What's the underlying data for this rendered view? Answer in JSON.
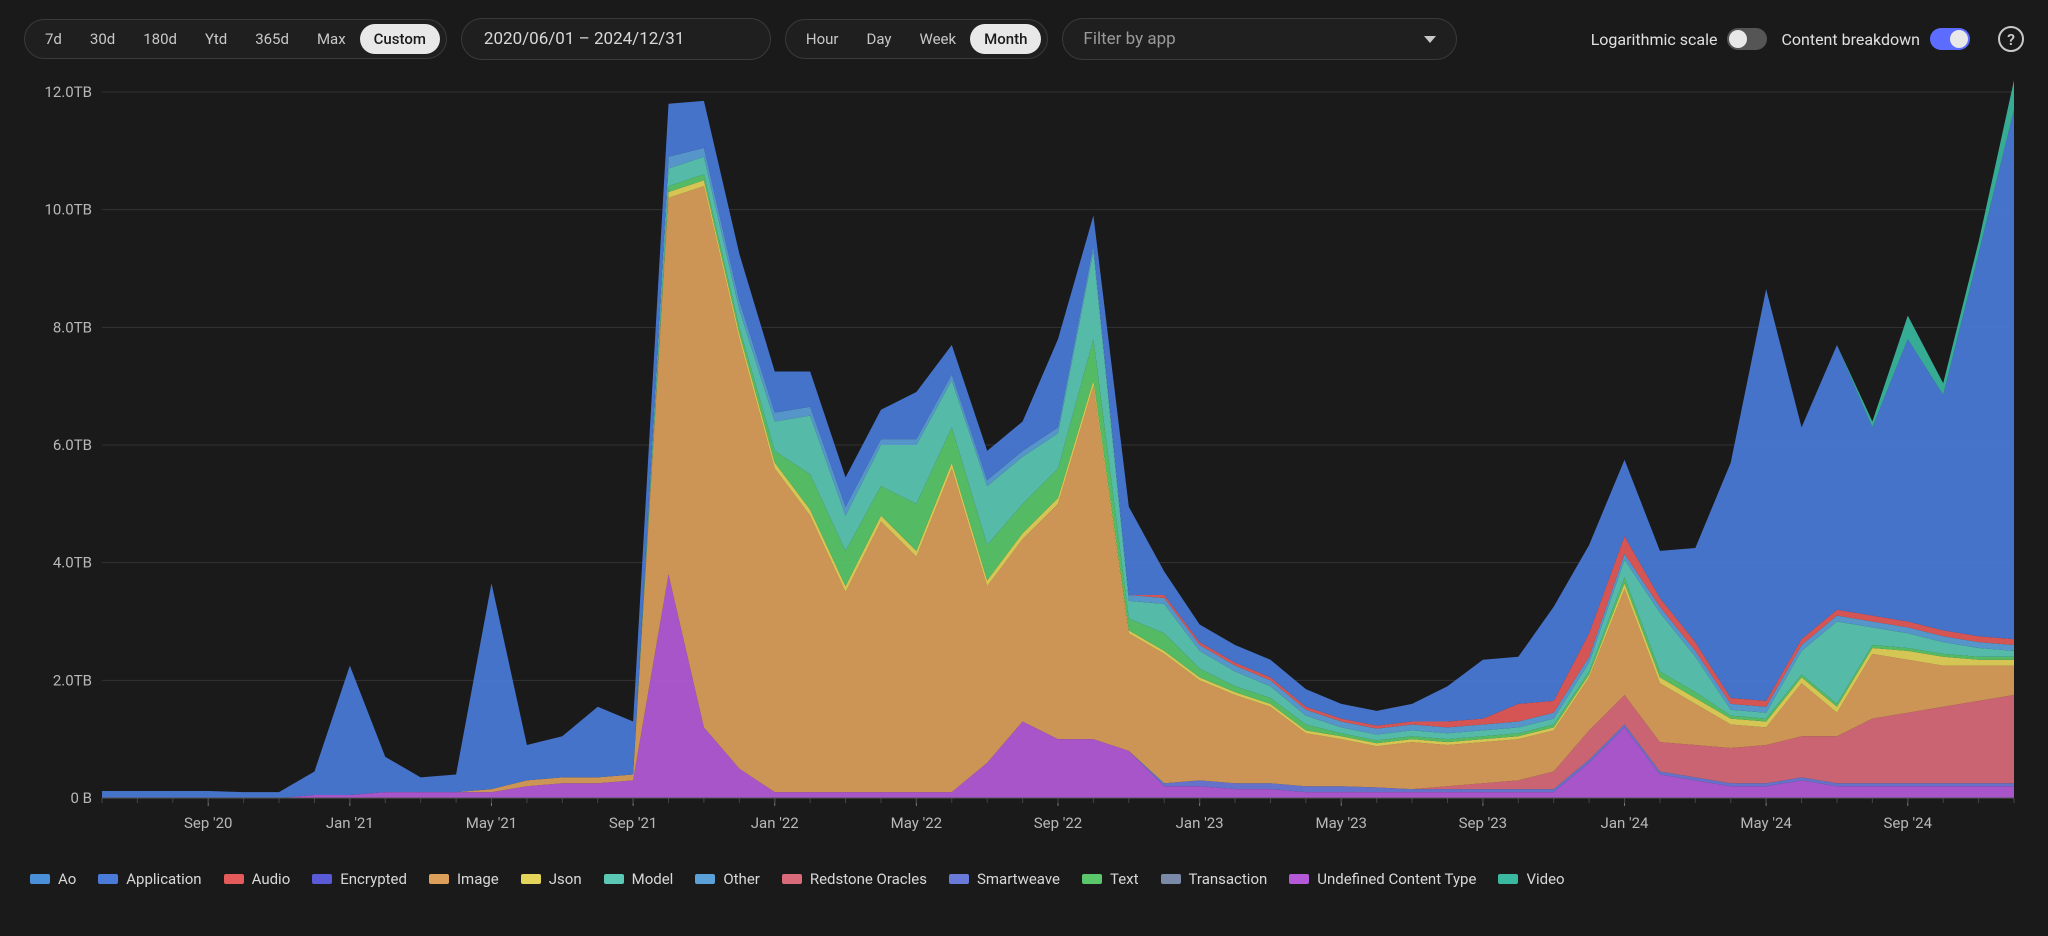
{
  "toolbar": {
    "range_presets": [
      "7d",
      "30d",
      "180d",
      "Ytd",
      "365d",
      "Max",
      "Custom"
    ],
    "range_active_index": 6,
    "date_range_text": "2020/06/01 – 2024/12/31",
    "granularity_options": [
      "Hour",
      "Day",
      "Week",
      "Month"
    ],
    "granularity_active_index": 3,
    "filter_placeholder": "Filter by app",
    "log_scale": {
      "label": "Logarithmic scale",
      "on": false
    },
    "content_breakdown": {
      "label": "Content breakdown",
      "on": true
    }
  },
  "chart": {
    "type": "stacked-area",
    "background_color": "#1a1a1a",
    "grid_color": "#333333",
    "axis_text_color": "#b8b8b8",
    "y_axis": {
      "min": 0,
      "max": 12,
      "tick_step": 2,
      "tick_labels": [
        "0 B",
        "2.0TB",
        "4.0TB",
        "6.0TB",
        "8.0TB",
        "10.0TB",
        "12.0TB"
      ]
    },
    "x_axis": {
      "tick_months": [
        "Sep '20",
        "Jan '21",
        "May '21",
        "Sep '21",
        "Jan '22",
        "May '22",
        "Sep '22",
        "Jan '23",
        "May '23",
        "Sep '23",
        "Jan '24",
        "May '24",
        "Sep '24"
      ],
      "tick_indices": [
        3,
        7,
        11,
        15,
        19,
        23,
        27,
        31,
        35,
        39,
        43,
        47,
        51
      ]
    },
    "months_count": 55,
    "series": [
      {
        "key": "ao",
        "label": "Ao",
        "color": "#4a90d9",
        "values": [
          0,
          0,
          0,
          0,
          0,
          0,
          0,
          0,
          0,
          0,
          0,
          0,
          0,
          0,
          0,
          0,
          0,
          0,
          0,
          0,
          0,
          0,
          0,
          0,
          0,
          0,
          0,
          0,
          0,
          0,
          0,
          0,
          0,
          0,
          0,
          0,
          0,
          0,
          0,
          0,
          0,
          0,
          0,
          0,
          0,
          0,
          0,
          0,
          0,
          0,
          0,
          0,
          0,
          0,
          0
        ]
      },
      {
        "key": "application",
        "label": "Application",
        "color": "#4a7bd9",
        "values": [
          0.12,
          0.12,
          0.12,
          0.12,
          0.1,
          0.1,
          0.4,
          2.2,
          0.6,
          0.25,
          0.3,
          3.5,
          0.6,
          0.7,
          1.2,
          0.9,
          0.9,
          0.8,
          0.8,
          0.7,
          0.6,
          0.5,
          0.5,
          0.8,
          0.5,
          0.5,
          0.5,
          1.5,
          0.5,
          1.5,
          0.4,
          0.3,
          0.3,
          0.3,
          0.3,
          0.25,
          0.25,
          0.3,
          0.6,
          1.0,
          0.8,
          1.6,
          1.5,
          1.3,
          0.8,
          1.6,
          4.0,
          7.0,
          3.6,
          4.5,
          3.2,
          4.8,
          4.0,
          6.5,
          9.0
        ]
      },
      {
        "key": "audio",
        "label": "Audio",
        "color": "#e55a5a",
        "values": [
          0,
          0,
          0,
          0,
          0,
          0,
          0,
          0,
          0,
          0,
          0,
          0,
          0,
          0,
          0,
          0,
          0,
          0,
          0,
          0,
          0,
          0,
          0,
          0,
          0,
          0,
          0,
          0,
          0,
          0,
          0.05,
          0.05,
          0.05,
          0.05,
          0.05,
          0.05,
          0.05,
          0.05,
          0.1,
          0.1,
          0.3,
          0.2,
          0.4,
          0.3,
          0.15,
          0.15,
          0.1,
          0.1,
          0.1,
          0.1,
          0.1,
          0.1,
          0.1,
          0.1,
          0.1
        ]
      },
      {
        "key": "encrypted",
        "label": "Encrypted",
        "color": "#5a5ad9",
        "values": [
          0,
          0,
          0,
          0,
          0,
          0,
          0,
          0,
          0,
          0,
          0,
          0,
          0,
          0,
          0,
          0,
          0,
          0,
          0,
          0,
          0,
          0,
          0,
          0,
          0,
          0,
          0,
          0,
          0,
          0,
          0,
          0,
          0,
          0,
          0,
          0,
          0,
          0,
          0,
          0,
          0,
          0,
          0,
          0,
          0,
          0,
          0,
          0,
          0,
          0,
          0,
          0,
          0,
          0,
          0
        ]
      },
      {
        "key": "image",
        "label": "Image",
        "color": "#dca05a",
        "values": [
          0,
          0,
          0,
          0,
          0,
          0,
          0,
          0,
          0,
          0,
          0,
          0.05,
          0.1,
          0.1,
          0.1,
          0.1,
          6.4,
          9.2,
          7.3,
          5.5,
          4.7,
          3.4,
          4.6,
          4.0,
          5.5,
          3.0,
          3.1,
          4.0,
          6.0,
          2.0,
          2.2,
          1.7,
          1.5,
          1.3,
          0.9,
          0.8,
          0.7,
          0.8,
          0.7,
          0.7,
          0.7,
          0.7,
          0.9,
          1.8,
          1.0,
          0.7,
          0.4,
          0.3,
          0.9,
          0.4,
          1.1,
          0.9,
          0.7,
          0.6,
          0.5
        ]
      },
      {
        "key": "json",
        "label": "Json",
        "color": "#e5d45a",
        "values": [
          0,
          0,
          0,
          0,
          0,
          0,
          0,
          0,
          0,
          0,
          0,
          0,
          0,
          0,
          0,
          0,
          0.1,
          0.1,
          0.1,
          0.1,
          0.1,
          0.1,
          0.1,
          0.1,
          0.1,
          0.1,
          0.1,
          0.1,
          0.1,
          0.05,
          0.05,
          0.05,
          0.05,
          0.05,
          0.05,
          0.05,
          0.05,
          0.05,
          0.05,
          0.05,
          0.05,
          0.05,
          0.05,
          0.1,
          0.1,
          0.1,
          0.1,
          0.1,
          0.1,
          0.1,
          0.1,
          0.15,
          0.15,
          0.1,
          0.1
        ]
      },
      {
        "key": "model",
        "label": "Model",
        "color": "#5ac8b4",
        "values": [
          0,
          0,
          0,
          0,
          0,
          0,
          0,
          0,
          0,
          0,
          0,
          0,
          0,
          0,
          0,
          0,
          0.3,
          0.3,
          0.3,
          0.5,
          1.0,
          0.6,
          0.7,
          1.0,
          0.8,
          1.0,
          0.8,
          0.6,
          1.5,
          0.3,
          0.5,
          0.3,
          0.25,
          0.2,
          0.15,
          0.1,
          0.1,
          0.1,
          0.1,
          0.1,
          0.1,
          0.1,
          0.15,
          0.3,
          1.0,
          0.6,
          0.1,
          0.1,
          0.4,
          1.4,
          0.3,
          0.25,
          0.2,
          0.15,
          0.1
        ]
      },
      {
        "key": "other",
        "label": "Other",
        "color": "#5aa0d9",
        "values": [
          0,
          0,
          0,
          0,
          0,
          0,
          0,
          0,
          0,
          0,
          0,
          0,
          0,
          0,
          0,
          0,
          0.2,
          0.15,
          0.15,
          0.15,
          0.15,
          0.15,
          0.1,
          0.1,
          0.1,
          0.1,
          0.1,
          0.1,
          0.1,
          0.1,
          0.1,
          0.1,
          0.1,
          0.1,
          0.1,
          0.1,
          0.1,
          0.1,
          0.1,
          0.1,
          0.1,
          0.1,
          0.1,
          0.1,
          0.1,
          0.1,
          0.1,
          0.1,
          0.1,
          0.1,
          0.1,
          0.1,
          0.1,
          0.1,
          0.1
        ]
      },
      {
        "key": "redstone",
        "label": "Redstone Oracles",
        "color": "#d96a7a",
        "values": [
          0,
          0,
          0,
          0,
          0,
          0,
          0,
          0,
          0,
          0,
          0,
          0,
          0,
          0,
          0,
          0,
          0,
          0,
          0,
          0,
          0,
          0,
          0,
          0,
          0,
          0,
          0,
          0,
          0,
          0,
          0,
          0,
          0,
          0,
          0,
          0,
          0,
          0,
          0.05,
          0.1,
          0.15,
          0.3,
          0.5,
          0.5,
          0.5,
          0.55,
          0.6,
          0.65,
          0.7,
          0.8,
          1.1,
          1.2,
          1.3,
          1.4,
          1.5
        ]
      },
      {
        "key": "smartweave",
        "label": "Smartweave",
        "color": "#6a7ad9",
        "values": [
          0,
          0,
          0,
          0,
          0,
          0,
          0,
          0,
          0,
          0,
          0,
          0,
          0,
          0,
          0,
          0,
          0,
          0,
          0,
          0,
          0,
          0,
          0,
          0,
          0,
          0,
          0,
          0,
          0,
          0,
          0.05,
          0.1,
          0.1,
          0.1,
          0.1,
          0.1,
          0.08,
          0.05,
          0.05,
          0.05,
          0.05,
          0.05,
          0.05,
          0.05,
          0.05,
          0.05,
          0.05,
          0.05,
          0.05,
          0.05,
          0.05,
          0.05,
          0.05,
          0.05,
          0.05
        ]
      },
      {
        "key": "text",
        "label": "Text",
        "color": "#5ac86a",
        "values": [
          0,
          0,
          0,
          0,
          0,
          0,
          0,
          0,
          0,
          0,
          0,
          0,
          0,
          0,
          0,
          0,
          0.1,
          0.1,
          0.1,
          0.2,
          0.6,
          0.6,
          0.5,
          0.8,
          0.6,
          0.6,
          0.5,
          0.5,
          0.7,
          0.2,
          0.3,
          0.15,
          0.1,
          0.1,
          0.1,
          0.05,
          0.05,
          0.05,
          0.05,
          0.05,
          0.05,
          0.05,
          0.05,
          0.1,
          0.1,
          0.1,
          0.05,
          0.05,
          0.05,
          0.05,
          0.05,
          0.05,
          0.05,
          0.05,
          0.05
        ]
      },
      {
        "key": "transaction",
        "label": "Transaction",
        "color": "#7a8aa8",
        "values": [
          0,
          0,
          0,
          0,
          0,
          0,
          0,
          0,
          0,
          0,
          0,
          0,
          0,
          0,
          0,
          0,
          0,
          0,
          0,
          0,
          0,
          0,
          0,
          0,
          0,
          0,
          0,
          0,
          0,
          0,
          0,
          0,
          0,
          0,
          0,
          0,
          0,
          0,
          0,
          0,
          0,
          0,
          0,
          0,
          0,
          0,
          0,
          0,
          0,
          0,
          0,
          0,
          0,
          0,
          0
        ]
      },
      {
        "key": "undefined",
        "label": "Undefined Content Type",
        "color": "#b45ad9",
        "values": [
          0,
          0,
          0,
          0,
          0,
          0,
          0.05,
          0.05,
          0.1,
          0.1,
          0.1,
          0.1,
          0.2,
          0.25,
          0.25,
          0.3,
          3.8,
          1.2,
          0.5,
          0.1,
          0.1,
          0.1,
          0.1,
          0.1,
          0.1,
          0.6,
          1.3,
          1.0,
          1.0,
          0.8,
          0.2,
          0.2,
          0.15,
          0.15,
          0.1,
          0.1,
          0.1,
          0.1,
          0.1,
          0.1,
          0.1,
          0.1,
          0.6,
          1.2,
          0.4,
          0.3,
          0.2,
          0.2,
          0.3,
          0.2,
          0.2,
          0.2,
          0.2,
          0.2,
          0.2
        ]
      },
      {
        "key": "video",
        "label": "Video",
        "color": "#3ab8a0",
        "values": [
          0,
          0,
          0,
          0,
          0,
          0,
          0,
          0,
          0,
          0,
          0,
          0,
          0,
          0,
          0,
          0,
          0,
          0,
          0,
          0,
          0,
          0,
          0,
          0,
          0,
          0,
          0,
          0,
          0,
          0,
          0,
          0,
          0,
          0,
          0,
          0,
          0,
          0,
          0,
          0,
          0,
          0,
          0,
          0,
          0,
          0,
          0,
          0,
          0,
          0,
          0.1,
          0.4,
          0.2,
          0.2,
          0.5
        ]
      }
    ],
    "legend_order": [
      "ao",
      "application",
      "audio",
      "encrypted",
      "image",
      "json",
      "model",
      "other",
      "redstone",
      "smartweave",
      "text",
      "transaction",
      "undefined",
      "video"
    ],
    "stack_order": [
      "undefined",
      "smartweave",
      "redstone",
      "image",
      "json",
      "text",
      "model",
      "other",
      "audio",
      "application",
      "video",
      "ao",
      "encrypted",
      "transaction"
    ]
  }
}
